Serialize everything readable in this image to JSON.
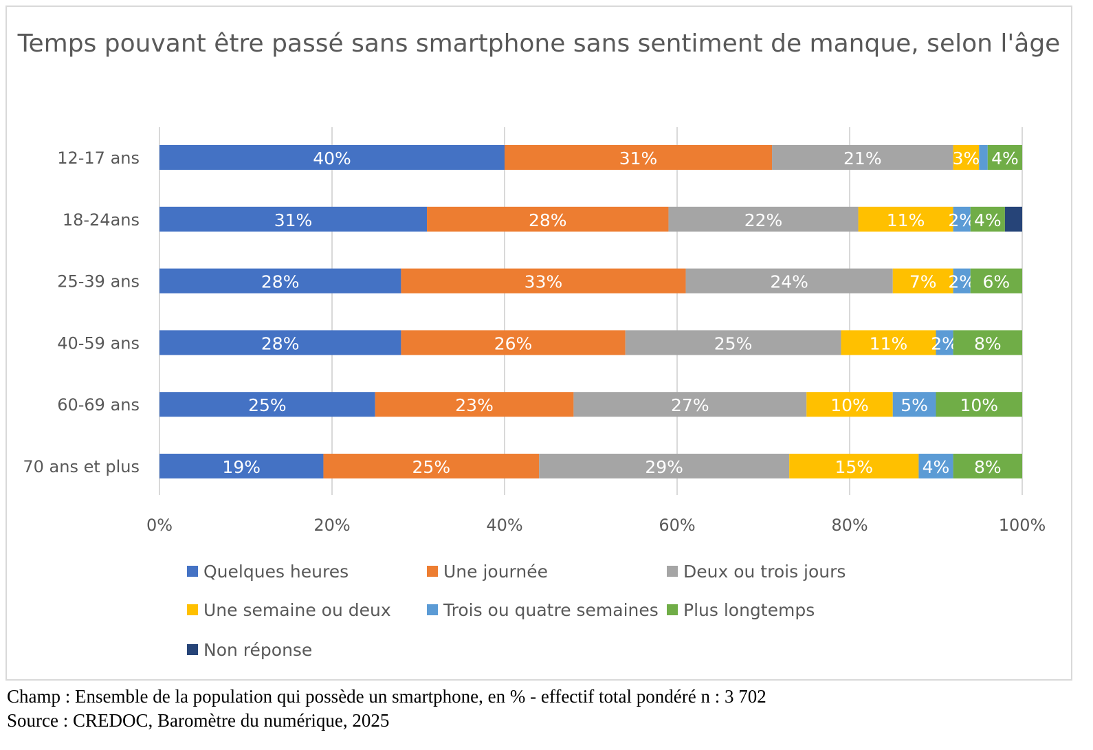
{
  "chart_data": {
    "type": "bar",
    "orientation": "horizontal",
    "stacked": "percent",
    "title": "Temps pouvant être passé sans smartphone sans sentiment de manque, selon l'âge",
    "categories": [
      "12-17 ans",
      "18-24ans",
      "25-39 ans",
      "40-59 ans",
      "60-69 ans",
      "70 ans et plus"
    ],
    "xlim": [
      0,
      100
    ],
    "xticks": [
      "0%",
      "20%",
      "40%",
      "60%",
      "80%",
      "100%"
    ],
    "grid": true,
    "legend_position": "bottom",
    "series": [
      {
        "name": "Quelques heures",
        "color": "#4472c4",
        "values": [
          40,
          31,
          28,
          28,
          25,
          19
        ],
        "labels": [
          "40%",
          "31%",
          "28%",
          "28%",
          "25%",
          "19%"
        ]
      },
      {
        "name": "Une journée",
        "color": "#ed7d31",
        "values": [
          31,
          28,
          33,
          26,
          23,
          25
        ],
        "labels": [
          "31%",
          "28%",
          "33%",
          "26%",
          "23%",
          "25%"
        ]
      },
      {
        "name": "Deux ou trois jours",
        "color": "#a5a5a5",
        "values": [
          21,
          22,
          24,
          25,
          27,
          29
        ],
        "labels": [
          "21%",
          "22%",
          "24%",
          "25%",
          "27%",
          "29%"
        ]
      },
      {
        "name": "Une semaine ou deux",
        "color": "#ffc000",
        "values": [
          3,
          11,
          7,
          11,
          10,
          15
        ],
        "labels": [
          "3%",
          "11%",
          "7%",
          "11%",
          "10%",
          "15%"
        ]
      },
      {
        "name": "Trois ou quatre semaines",
        "color": "#5b9bd5",
        "values": [
          1,
          2,
          2,
          2,
          5,
          4
        ],
        "labels": [
          "",
          "2%",
          "2%",
          "2%",
          "5%",
          "4%"
        ]
      },
      {
        "name": "Plus longtemps",
        "color": "#70ad47",
        "values": [
          4,
          4,
          6,
          8,
          10,
          8
        ],
        "labels": [
          "4%",
          "4%",
          "6%",
          "8%",
          "10%",
          "8%"
        ]
      },
      {
        "name": "Non réponse",
        "color": "#264478",
        "values": [
          0,
          2,
          0,
          0,
          0,
          0
        ],
        "labels": [
          "",
          "",
          "",
          "",
          "",
          ""
        ]
      }
    ]
  },
  "footnotes": {
    "champ": "Champ : Ensemble de la population qui possède un smartphone, en % - effectif total pondéré n : 3 702",
    "source": "Source : CREDOC, Baromètre du numérique, 2025"
  }
}
